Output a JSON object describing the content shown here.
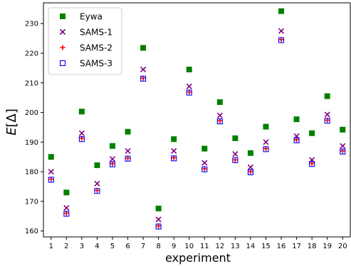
{
  "chart_data": {
    "type": "scatter",
    "xlabel": "experiment",
    "ylabel": "E[Δ]",
    "xlim": [
      0.5,
      20.5
    ],
    "ylim": [
      158,
      237
    ],
    "x": [
      1,
      2,
      3,
      4,
      5,
      6,
      7,
      8,
      9,
      10,
      11,
      12,
      13,
      14,
      15,
      16,
      17,
      18,
      19,
      20
    ],
    "x_ticks": [
      "1",
      "2",
      "3",
      "4",
      "5",
      "6",
      "7",
      "8",
      "9",
      "10",
      "11",
      "12",
      "13",
      "14",
      "15",
      "16",
      "17",
      "18",
      "19",
      "20"
    ],
    "y_ticks": [
      160,
      170,
      180,
      190,
      200,
      210,
      220,
      230
    ],
    "grid": false,
    "legend": "top-left",
    "series": [
      {
        "name": "Eywa",
        "marker": "square",
        "color": "#008000",
        "values": [
          185,
          173,
          200.3,
          182.2,
          188.7,
          193.5,
          221.8,
          167.6,
          191,
          214.5,
          187.8,
          203.5,
          191.3,
          186.3,
          195.2,
          234.2,
          197.7,
          193,
          205.5,
          194.2
        ]
      },
      {
        "name": "SAMS-1",
        "marker": "x",
        "color": "#800080",
        "values": [
          180,
          167.8,
          193,
          176,
          184.3,
          187,
          214.5,
          163.9,
          187,
          208.8,
          183,
          199,
          186,
          181.5,
          190,
          227.5,
          192,
          184,
          199.3,
          188.7
        ]
      },
      {
        "name": "SAMS-2",
        "marker": "plus",
        "color": "#ff0000",
        "values": [
          177.5,
          166,
          191.3,
          173.7,
          182.7,
          184.6,
          211.6,
          161.7,
          184.7,
          206.9,
          181,
          197.2,
          184,
          180,
          187.8,
          224.6,
          190.8,
          182.8,
          197.4,
          187
        ]
      },
      {
        "name": "SAMS-3",
        "marker": "open-square",
        "color": "#0000ff",
        "values": [
          177.3,
          165.8,
          191,
          173.5,
          182.5,
          184.4,
          211.4,
          161.5,
          184.5,
          206.7,
          180.8,
          197,
          183.9,
          179.8,
          187.6,
          224.4,
          190.6,
          182.6,
          197.2,
          186.8
        ]
      }
    ]
  }
}
